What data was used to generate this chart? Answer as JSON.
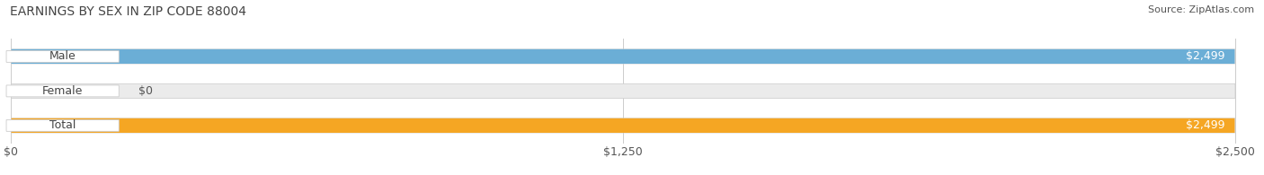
{
  "title": "EARNINGS BY SEX IN ZIP CODE 88004",
  "source": "Source: ZipAtlas.com",
  "categories": [
    "Male",
    "Female",
    "Total"
  ],
  "values": [
    2499,
    0,
    2499
  ],
  "max_value": 2500,
  "bar_colors": [
    "#6baed6",
    "#f4a7b9",
    "#f5a623"
  ],
  "bar_bg_color": "#ebebeb",
  "label_values": [
    "$2,499",
    "$0",
    "$2,499"
  ],
  "value_label_color_inside": "#ffffff",
  "value_label_color_outside": "#555555",
  "x_ticks": [
    0,
    1250,
    2500
  ],
  "x_tick_labels": [
    "$0",
    "$1,250",
    "$2,500"
  ],
  "title_fontsize": 10,
  "source_fontsize": 8,
  "bar_label_fontsize": 9,
  "value_label_fontsize": 9,
  "tick_fontsize": 9,
  "background_color": "#ffffff",
  "bar_height": 0.42,
  "pill_text_color": "#444444",
  "grid_color": "#cccccc"
}
